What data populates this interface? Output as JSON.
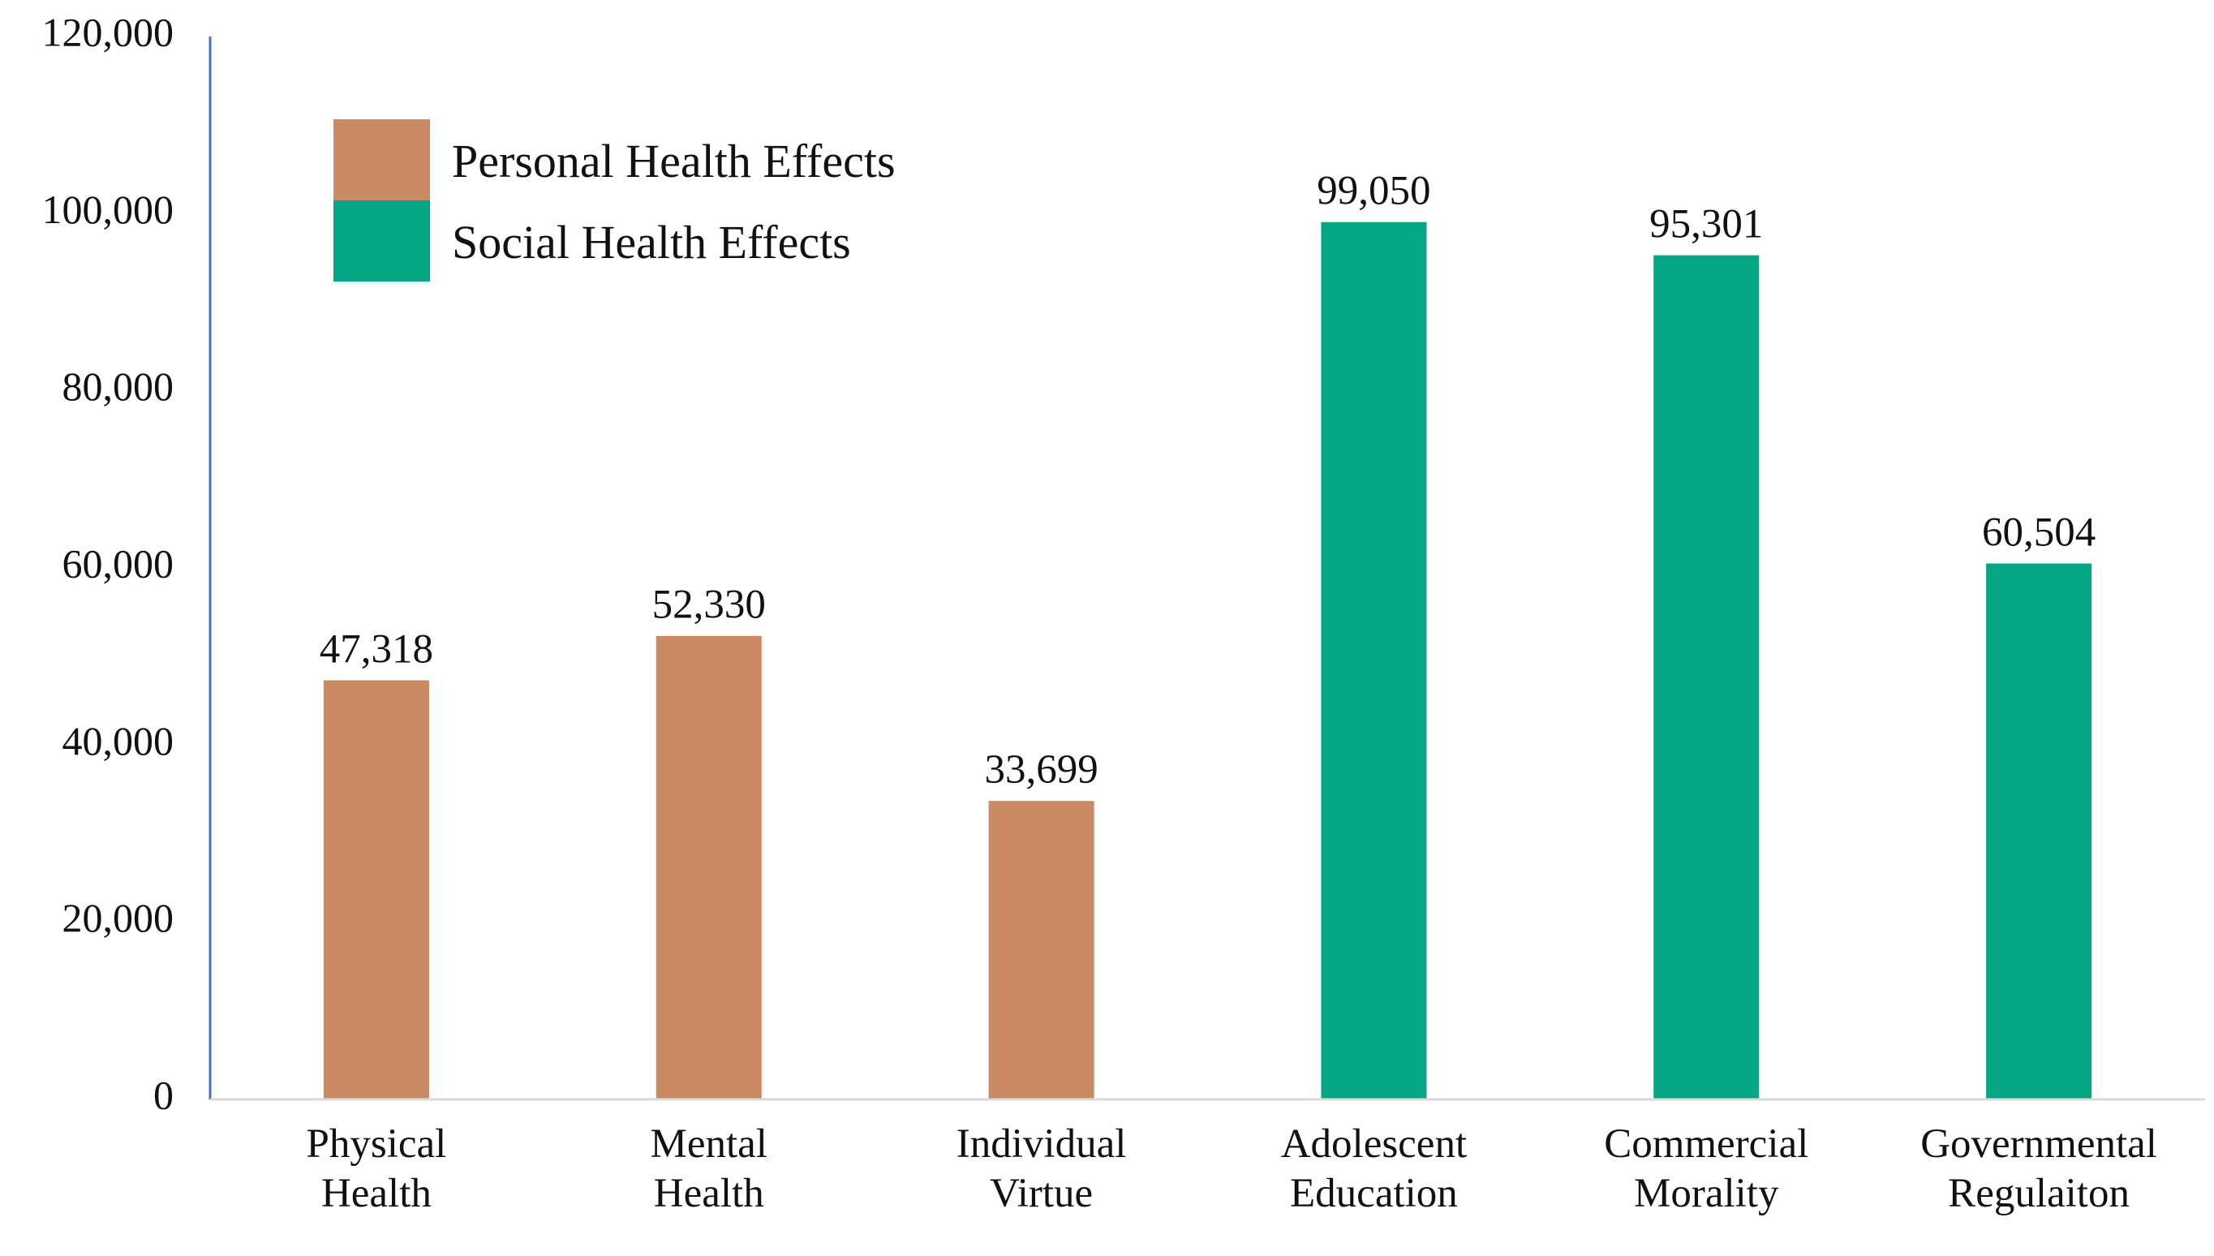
{
  "chart_data": {
    "type": "bar",
    "title": "",
    "xlabel": "",
    "ylabel": "",
    "ylim": [
      0,
      120000
    ],
    "yticks": [
      0,
      20000,
      40000,
      60000,
      80000,
      100000,
      120000
    ],
    "ytick_labels": [
      "0",
      "20,000",
      "40,000",
      "60,000",
      "80,000",
      "100,000",
      "120,000"
    ],
    "grid": false,
    "legend_position": "top-left",
    "series": [
      {
        "name": "Personal Health Effects",
        "color": "#CC8A64",
        "items": [
          {
            "label": [
              "Physical",
              "Health"
            ],
            "value": 47318,
            "value_label": "47,318"
          },
          {
            "label": [
              "Mental",
              "Health"
            ],
            "value": 52330,
            "value_label": "52,330"
          },
          {
            "label": [
              "Individual",
              "Virtue"
            ],
            "value": 33699,
            "value_label": "33,699"
          }
        ]
      },
      {
        "name": "Social Health Effects",
        "color": "#05A684",
        "items": [
          {
            "label": [
              "Adolescent",
              "Education"
            ],
            "value": 99050,
            "value_label": "99,050"
          },
          {
            "label": [
              "Commercial",
              "Morality"
            ],
            "value": 95301,
            "value_label": "95,301"
          },
          {
            "label": [
              "Governmental",
              "Regulaiton"
            ],
            "value": 60504,
            "value_label": "60,504"
          }
        ]
      }
    ]
  }
}
